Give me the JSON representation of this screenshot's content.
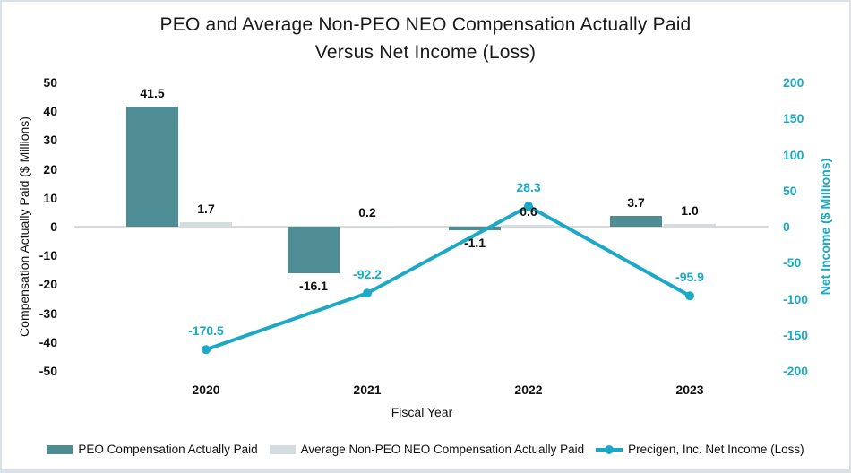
{
  "frame": {
    "border_color": "#D8E2E7",
    "background": "#FFFFFF"
  },
  "chart_data": {
    "type": "combo-bar-line",
    "title_line1": "PEO and Average Non-PEO NEO Compensation Actually Paid",
    "title_line2": "Versus Net Income (Loss)",
    "x_axis_title": "Fiscal Year",
    "categories": [
      "2020",
      "2021",
      "2022",
      "2023"
    ],
    "left_axis": {
      "title": "Compensation Actually Paid ($ Millions)",
      "ticks": [
        50,
        40,
        30,
        20,
        10,
        0,
        -10,
        -20,
        -30,
        -40,
        -50
      ],
      "range": [
        -50,
        50
      ],
      "color": "#111111"
    },
    "right_axis": {
      "title": "Net Income ($ Millions)",
      "ticks": [
        200,
        150,
        100,
        50,
        0,
        -50,
        -100,
        -150,
        -200
      ],
      "range": [
        -200,
        200
      ],
      "color": "#1BA9C5"
    },
    "series": [
      {
        "name": "PEO Compensation Actually Paid",
        "type": "bar",
        "axis": "left",
        "color": "#4F8D95",
        "values": [
          41.5,
          -16.1,
          -1.1,
          3.7
        ],
        "labels": [
          "41.5",
          "-16.1",
          "-1.1",
          "3.7"
        ]
      },
      {
        "name": "Average Non-PEO NEO Compensation Actually Paid",
        "type": "bar",
        "axis": "left",
        "color": "#D3DDE0",
        "values": [
          1.7,
          0.2,
          0.6,
          1.0
        ],
        "labels": [
          "1.7",
          "0.2",
          "0.6",
          "1.0"
        ]
      },
      {
        "name": "Precigen, Inc. Net Income (Loss)",
        "type": "line",
        "axis": "right",
        "color": "#1BA9C5",
        "values": [
          -170.5,
          -92.2,
          28.3,
          -95.9
        ],
        "labels": [
          "-170.5",
          "-92.2",
          "28.3",
          "-95.9"
        ]
      }
    ],
    "legend_position": "bottom",
    "gridlines": "zero-line-only",
    "zero_line_color": "#D9D9D9"
  }
}
